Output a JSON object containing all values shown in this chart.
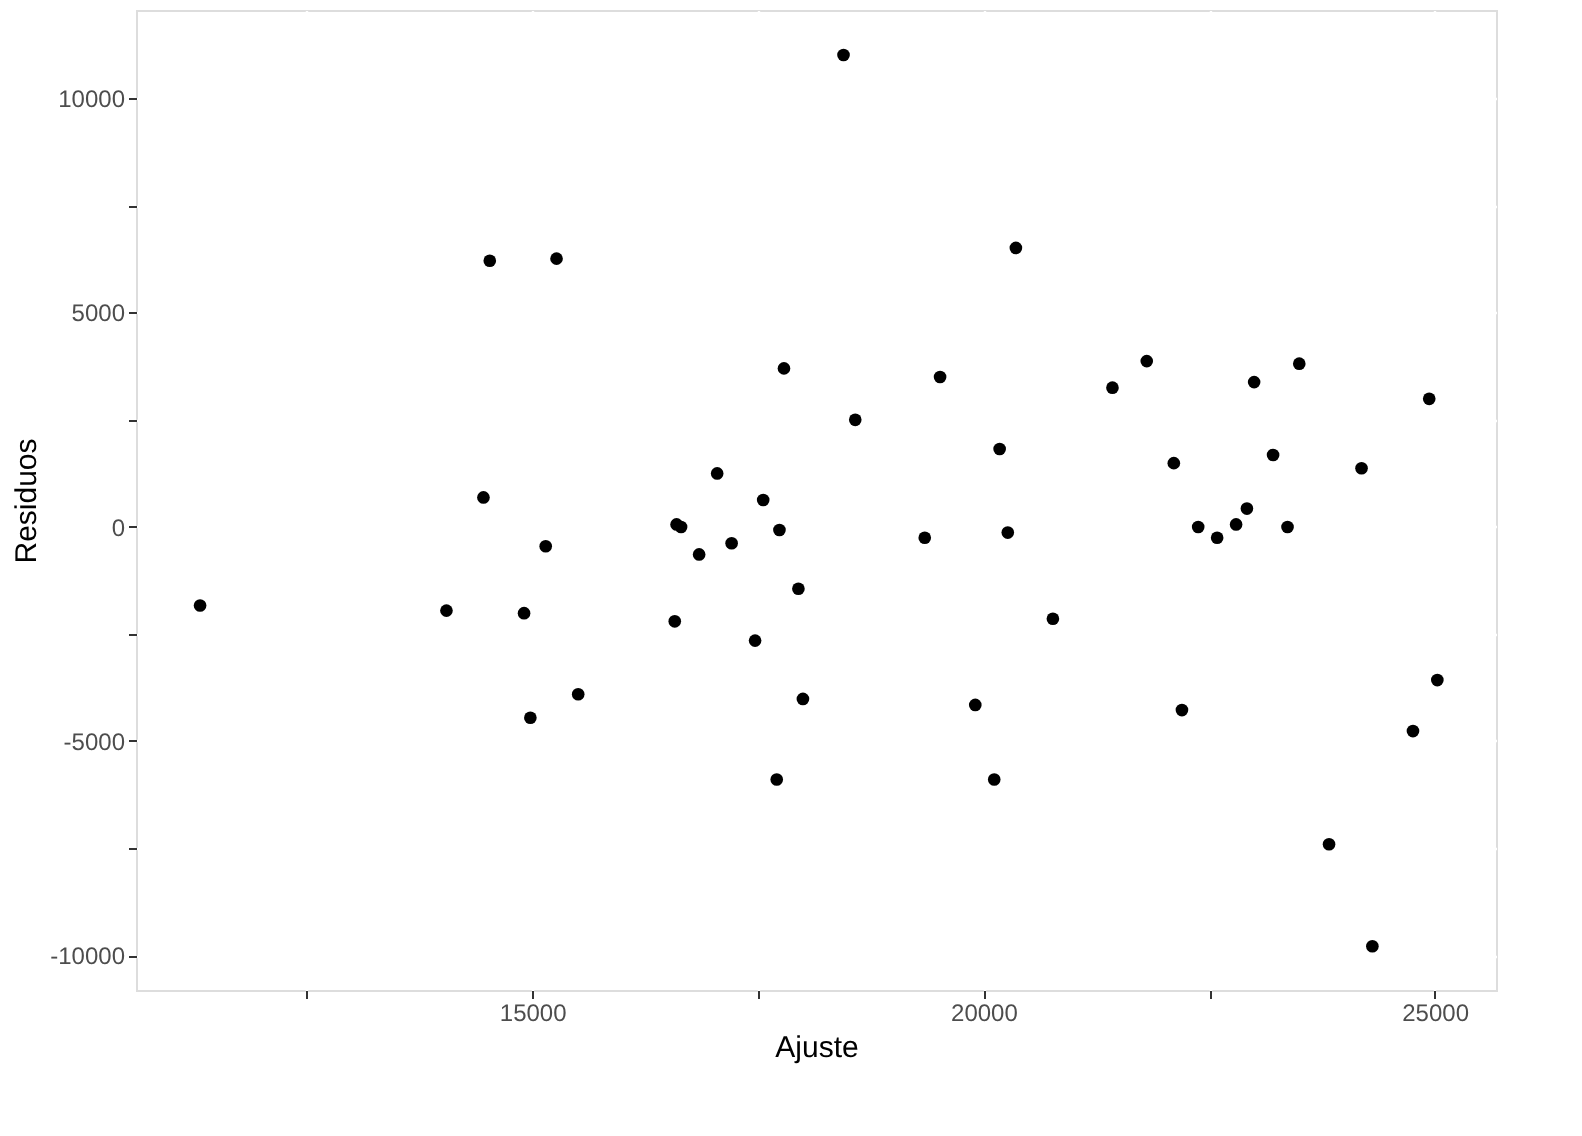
{
  "chart_data": {
    "type": "scatter",
    "xlabel": "Ajuste",
    "ylabel": "Residuos",
    "x": [
      11320,
      14050,
      14530,
      15270,
      14460,
      14910,
      14980,
      15150,
      15510,
      17790,
      17050,
      17560,
      16600,
      16650,
      16850,
      17210,
      17740,
      17950,
      16580,
      17470,
      18000,
      17710,
      18450,
      20360,
      19520,
      18580,
      21810,
      21430,
      23500,
      23000,
      24940,
      20180,
      23210,
      22110,
      24190,
      22920,
      22380,
      22590,
      22800,
      23370,
      19350,
      20270,
      20770,
      19910,
      22200,
      20120,
      25030,
      24760,
      23830,
      24310
    ],
    "values": [
      -1840,
      -1960,
      6200,
      6250,
      680,
      -2020,
      -4460,
      -460,
      -3910,
      3690,
      1240,
      620,
      50,
      -10,
      -650,
      -390,
      -80,
      -1450,
      -2210,
      -2660,
      -4020,
      -5900,
      11000,
      6500,
      3490,
      2490,
      3860,
      3240,
      3800,
      3370,
      2980,
      1810,
      1670,
      1480,
      1360,
      420,
      -10,
      -260,
      50,
      -10,
      -260,
      -140,
      -2150,
      -4160,
      -4280,
      -5900,
      -3580,
      -4770,
      -7410,
      -9790
    ],
    "color": "#000000",
    "marker": "circle",
    "xlim": [
      10610,
      25680
    ],
    "ylim": [
      -10810,
      12050
    ],
    "xticks": [
      {
        "value": 12500,
        "label": null
      },
      15000,
      {
        "value": 17500,
        "label": null
      },
      20000,
      {
        "value": 22500,
        "label": null
      },
      25000
    ],
    "yticks": [
      {
        "value": -10000,
        "label": "-10000"
      },
      {
        "value": -7500,
        "label": null
      },
      {
        "value": -5000,
        "label": "-5000"
      },
      {
        "value": -2500,
        "label": null
      },
      0,
      {
        "value": 2500,
        "label": null
      },
      5000,
      {
        "value": 7500,
        "label": null
      },
      10000
    ],
    "grid": true
  }
}
